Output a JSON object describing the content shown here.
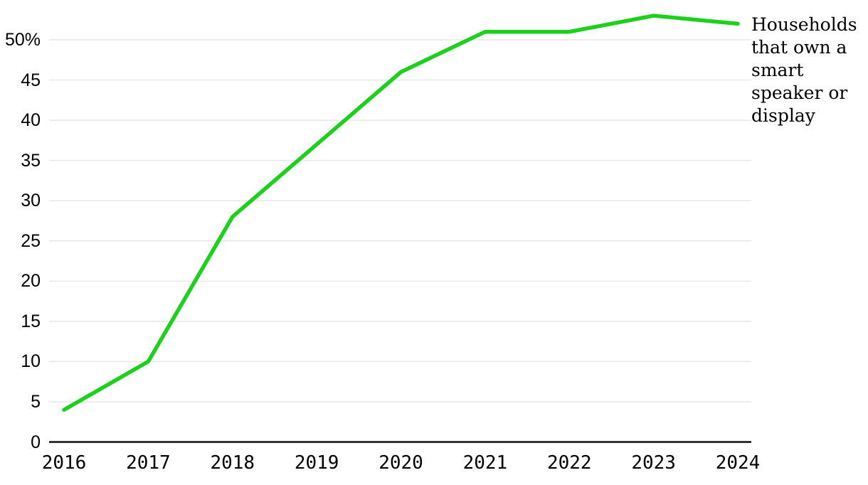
{
  "chart_data": {
    "type": "line",
    "title": "",
    "x": [
      2016,
      2017,
      2018,
      2019,
      2020,
      2021,
      2022,
      2023,
      2024
    ],
    "xtick_labels": [
      "2016",
      "2017",
      "2018",
      "2019",
      "2020",
      "2021",
      "2022",
      "2023",
      "2024"
    ],
    "series": [
      {
        "name": "Households that own a smart speaker or display",
        "values": [
          4,
          10,
          28,
          37,
          46,
          51,
          51,
          53,
          52
        ]
      }
    ],
    "ytick_values": [
      0,
      5,
      10,
      15,
      20,
      25,
      30,
      35,
      40,
      45,
      50
    ],
    "ytick_labels": [
      "0",
      "5",
      "10",
      "15",
      "20",
      "25",
      "30",
      "35",
      "40",
      "45",
      "50%"
    ],
    "ylim": [
      0,
      50
    ],
    "xlabel": "",
    "ylabel": "",
    "grid": "horizontal",
    "legend_position": "right-of-line-end",
    "legend": {
      "label": "Households\nthat own a\nsmart\nspeaker or\ndisplay"
    },
    "colors": {
      "line": "#1cd01c",
      "grid": "#e8e8e8",
      "axis": "#333333",
      "text": "#000000"
    }
  }
}
